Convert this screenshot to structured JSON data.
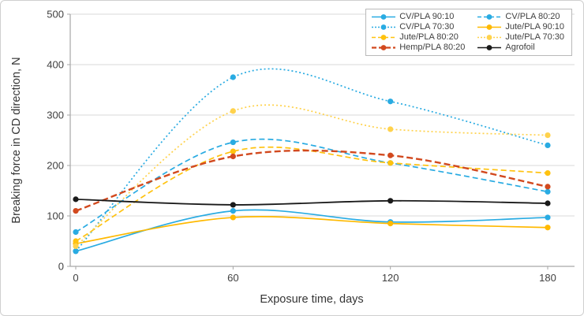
{
  "chart_data": {
    "type": "line",
    "x": [
      0,
      60,
      120,
      180
    ],
    "xticks": [
      0,
      60,
      120,
      180
    ],
    "yticks": [
      0,
      100,
      200,
      300,
      400,
      500
    ],
    "ylim": [
      0,
      500
    ],
    "xlabel": "Exposure time, days",
    "ylabel": "Breaking force in CD direction, N",
    "grid": "horizontal",
    "legend_position": "top-right",
    "series": [
      {
        "name": "CV/PLA 90:10",
        "color": "#29ABE2",
        "dash": "solid",
        "width": 1.7,
        "values": [
          30,
          110,
          88,
          97
        ]
      },
      {
        "name": "CV/PLA 80:20",
        "color": "#29ABE2",
        "dash": "dashed",
        "width": 1.7,
        "values": [
          68,
          246,
          205,
          148
        ]
      },
      {
        "name": "CV/PLA 70:30",
        "color": "#29ABE2",
        "dash": "dotted",
        "width": 1.7,
        "values": [
          30,
          375,
          327,
          240
        ]
      },
      {
        "name": "Jute/PLA 90:10",
        "color": "#FFB900",
        "dash": "solid",
        "width": 1.7,
        "values": [
          45,
          97,
          85,
          77
        ]
      },
      {
        "name": "Jute/PLA 80:20",
        "color": "#FFC20E",
        "dash": "dashed",
        "width": 1.7,
        "values": [
          50,
          228,
          205,
          185
        ]
      },
      {
        "name": "Jute/PLA 70:30",
        "color": "#FFD24C",
        "dash": "dotted",
        "width": 1.7,
        "values": [
          40,
          308,
          272,
          260
        ]
      },
      {
        "name": "Hemp/PLA 80:20",
        "color": "#D2491E",
        "dash": "dashed-long",
        "width": 2.4,
        "values": [
          110,
          218,
          220,
          158
        ]
      },
      {
        "name": "Agrofoil",
        "color": "#1A1A1A",
        "dash": "solid",
        "width": 1.8,
        "values": [
          133,
          122,
          130,
          125
        ]
      }
    ],
    "colors": {
      "grid": "#D9D9D9",
      "axis": "#A6A6A6",
      "tick_label": "#404040"
    }
  }
}
